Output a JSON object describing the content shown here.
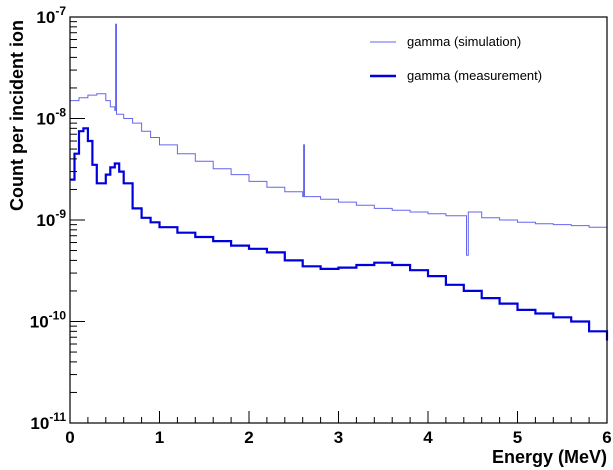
{
  "chart_data": {
    "type": "line",
    "xlabel": "Energy (MeV)",
    "ylabel": "Count per incident ion",
    "xlim": [
      0,
      6
    ],
    "ylim": [
      1e-11,
      1e-07
    ],
    "ylog": true,
    "grid": false,
    "legend_position": "top-right",
    "x_ticks": [
      0,
      1,
      2,
      3,
      4,
      5,
      6
    ],
    "x_tick_labels": [
      "0",
      "1",
      "2",
      "3",
      "4",
      "5",
      "6"
    ],
    "y_ticks": [
      1e-11,
      1e-10,
      1e-09,
      1e-08,
      1e-07
    ],
    "y_tick_labels": [
      "10-11",
      "10-10",
      "10-9",
      "10-8",
      "10-7"
    ],
    "series": [
      {
        "name": "gamma (simulation)",
        "color": "#6666ee",
        "x": [
          0.0,
          0.1,
          0.2,
          0.3,
          0.4,
          0.45,
          0.5,
          0.51,
          0.52,
          0.6,
          0.7,
          0.8,
          0.9,
          1.0,
          1.2,
          1.4,
          1.6,
          1.8,
          2.0,
          2.2,
          2.4,
          2.6,
          2.61,
          2.62,
          2.8,
          3.0,
          3.2,
          3.4,
          3.6,
          3.8,
          4.0,
          4.2,
          4.4,
          4.43,
          4.45,
          4.6,
          4.8,
          5.0,
          5.2,
          5.4,
          5.6,
          5.8,
          6.0
        ],
        "y": [
          1.5e-08,
          1.6e-08,
          1.7e-08,
          1.75e-08,
          1.5e-08,
          1.3e-08,
          1.2e-08,
          8.5e-08,
          1.1e-08,
          1e-08,
          9e-09,
          7.5e-09,
          6.5e-09,
          5.5e-09,
          4.5e-09,
          3.8e-09,
          3.2e-09,
          2.8e-09,
          2.4e-09,
          2.1e-09,
          1.9e-09,
          1.7e-09,
          5.5e-09,
          1.7e-09,
          1.6e-09,
          1.5e-09,
          1.4e-09,
          1.3e-09,
          1.25e-09,
          1.2e-09,
          1.15e-09,
          1.1e-09,
          1.1e-09,
          4.5e-10,
          1.2e-09,
          1.05e-09,
          1e-09,
          9.5e-10,
          9.2e-10,
          9e-10,
          8.8e-10,
          8.5e-10,
          7e-10
        ]
      },
      {
        "name": "gamma (measurement)",
        "color": "#0000dd",
        "x": [
          0.0,
          0.05,
          0.1,
          0.15,
          0.2,
          0.25,
          0.3,
          0.35,
          0.4,
          0.45,
          0.5,
          0.55,
          0.6,
          0.7,
          0.8,
          0.9,
          1.0,
          1.2,
          1.4,
          1.6,
          1.8,
          2.0,
          2.2,
          2.4,
          2.6,
          2.8,
          3.0,
          3.2,
          3.4,
          3.6,
          3.8,
          4.0,
          4.2,
          4.4,
          4.6,
          4.8,
          5.0,
          5.2,
          5.4,
          5.6,
          5.8,
          6.0
        ],
        "y": [
          2.5e-09,
          4.5e-09,
          7.5e-09,
          8e-09,
          6e-09,
          3.5e-09,
          2.3e-09,
          2.3e-09,
          2.8e-09,
          3.3e-09,
          3.6e-09,
          3e-09,
          2.3e-09,
          1.3e-09,
          1.05e-09,
          9.5e-10,
          8.5e-10,
          7.5e-10,
          6.8e-10,
          6.2e-10,
          5.6e-10,
          5.2e-10,
          4.8e-10,
          4e-10,
          3.5e-10,
          3.3e-10,
          3.4e-10,
          3.6e-10,
          3.8e-10,
          3.6e-10,
          3.2e-10,
          2.8e-10,
          2.3e-10,
          2e-10,
          1.7e-10,
          1.5e-10,
          1.3e-10,
          1.2e-10,
          1.1e-10,
          1e-10,
          8e-11,
          6.5e-11
        ]
      }
    ]
  }
}
